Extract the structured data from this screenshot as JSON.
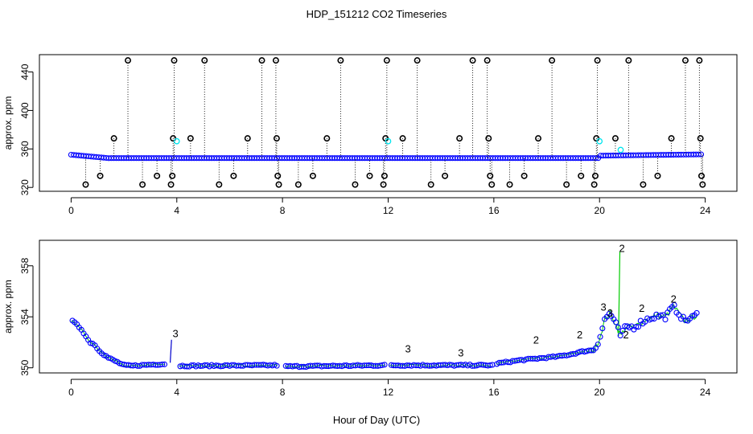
{
  "title": "HDP_151212  CO2 Timeseries",
  "xlabel": "Hour of Day (UTC)",
  "colors": {
    "frame": "#000000",
    "black_pts": "#000000",
    "blue_pts": "#0000ff",
    "cyan_pts": "#00e5ee",
    "green_pts": "#00cc00",
    "blue_lbl": "#0000cd"
  },
  "chart_data": [
    {
      "type": "scatter",
      "ylabel": "approx. ppm",
      "xlim": [
        -1.2,
        25.2
      ],
      "ylim": [
        316,
        458
      ],
      "xticks": [
        0,
        4,
        8,
        12,
        16,
        20,
        24
      ],
      "yticks": [
        320,
        360,
        400,
        440
      ],
      "flag_points": [
        {
          "x": 0.55,
          "y": 323
        },
        {
          "x": 1.1,
          "y": 332
        },
        {
          "x": 1.62,
          "y": 371
        },
        {
          "x": 2.15,
          "y": 452
        },
        {
          "x": 2.7,
          "y": 323
        },
        {
          "x": 3.25,
          "y": 332
        },
        {
          "x": 3.78,
          "y": 323
        },
        {
          "x": 3.83,
          "y": 332
        },
        {
          "x": 3.86,
          "y": 371
        },
        {
          "x": 3.9,
          "y": 452
        },
        {
          "x": 4.52,
          "y": 371
        },
        {
          "x": 5.05,
          "y": 452
        },
        {
          "x": 5.6,
          "y": 323
        },
        {
          "x": 6.15,
          "y": 332
        },
        {
          "x": 6.68,
          "y": 371
        },
        {
          "x": 7.22,
          "y": 452
        },
        {
          "x": 7.75,
          "y": 452
        },
        {
          "x": 7.78,
          "y": 371
        },
        {
          "x": 7.82,
          "y": 332
        },
        {
          "x": 7.86,
          "y": 323
        },
        {
          "x": 8.6,
          "y": 323
        },
        {
          "x": 9.15,
          "y": 332
        },
        {
          "x": 9.68,
          "y": 371
        },
        {
          "x": 10.2,
          "y": 452
        },
        {
          "x": 10.75,
          "y": 323
        },
        {
          "x": 11.3,
          "y": 332
        },
        {
          "x": 11.82,
          "y": 323
        },
        {
          "x": 11.86,
          "y": 332
        },
        {
          "x": 11.9,
          "y": 371
        },
        {
          "x": 11.95,
          "y": 452
        },
        {
          "x": 12.55,
          "y": 371
        },
        {
          "x": 13.1,
          "y": 452
        },
        {
          "x": 13.62,
          "y": 323
        },
        {
          "x": 14.15,
          "y": 332
        },
        {
          "x": 14.7,
          "y": 371
        },
        {
          "x": 15.2,
          "y": 452
        },
        {
          "x": 15.75,
          "y": 452
        },
        {
          "x": 15.8,
          "y": 371
        },
        {
          "x": 15.86,
          "y": 332
        },
        {
          "x": 15.92,
          "y": 323
        },
        {
          "x": 16.6,
          "y": 323
        },
        {
          "x": 17.15,
          "y": 332
        },
        {
          "x": 17.68,
          "y": 371
        },
        {
          "x": 18.2,
          "y": 452
        },
        {
          "x": 18.75,
          "y": 323
        },
        {
          "x": 19.3,
          "y": 332
        },
        {
          "x": 19.8,
          "y": 323
        },
        {
          "x": 19.84,
          "y": 332
        },
        {
          "x": 19.88,
          "y": 371
        },
        {
          "x": 19.92,
          "y": 452
        },
        {
          "x": 20.6,
          "y": 371
        },
        {
          "x": 21.1,
          "y": 452
        },
        {
          "x": 21.65,
          "y": 323
        },
        {
          "x": 22.2,
          "y": 332
        },
        {
          "x": 22.72,
          "y": 371
        },
        {
          "x": 23.25,
          "y": 452
        },
        {
          "x": 23.78,
          "y": 452
        },
        {
          "x": 23.82,
          "y": 371
        },
        {
          "x": 23.86,
          "y": 332
        },
        {
          "x": 23.9,
          "y": 323
        }
      ],
      "cyan_points": [
        {
          "x": 4.0,
          "y": 368
        },
        {
          "x": 12.0,
          "y": 368
        },
        {
          "x": 20.0,
          "y": 368
        },
        {
          "x": 20.8,
          "y": 359
        }
      ]
    },
    {
      "type": "scatter",
      "ylabel": "approx. ppm",
      "xlim": [
        -1.2,
        25.2
      ],
      "ylim": [
        349.6,
        360.0
      ],
      "xticks": [
        0,
        4,
        8,
        12,
        16,
        20,
        24
      ],
      "yticks": [
        350,
        354,
        358
      ],
      "gaps": [
        [
          3.55,
          4.05
        ],
        [
          7.8,
          8.05
        ],
        [
          11.9,
          12.05
        ],
        [
          15.95,
          16.05
        ]
      ],
      "series": [
        {
          "marker": "o",
          "x": [
            0.0,
            0.1,
            0.25,
            0.4,
            0.55,
            0.7,
            0.85,
            1.0,
            1.2,
            1.4,
            1.6,
            1.8,
            2.0,
            2.3,
            2.6,
            3.0,
            3.5,
            4.0,
            7.8,
            8.0,
            11.9,
            12.0,
            15.95,
            16.0,
            17.0,
            18.0,
            18.5,
            19.0,
            19.4,
            19.8,
            20.0,
            20.2,
            20.4,
            20.6,
            20.8,
            21.0,
            21.3,
            21.6,
            21.9,
            22.2,
            22.5,
            22.8,
            23.0,
            23.2,
            23.5,
            23.7
          ],
          "y": [
            353.7,
            353.6,
            353.3,
            353.0,
            352.5,
            352.0,
            351.9,
            351.5,
            351.1,
            350.8,
            350.6,
            350.4,
            350.2,
            350.15,
            350.2,
            350.25,
            350.3,
            350.15,
            350.2,
            350.1,
            350.2,
            350.2,
            350.2,
            350.3,
            350.6,
            350.8,
            350.9,
            351.1,
            351.3,
            351.4,
            352.3,
            353.8,
            354.3,
            353.5,
            352.5,
            353.2,
            353.2,
            353.6,
            353.9,
            354.1,
            354.0,
            354.8,
            354.3,
            353.7,
            353.9,
            354.2
          ]
        }
      ],
      "labels": [
        {
          "text": "3",
          "x": 3.95,
          "y": 352.4,
          "series": "3"
        },
        {
          "text": "3",
          "x": 12.75,
          "y": 351.2,
          "series": "3"
        },
        {
          "text": "3",
          "x": 14.75,
          "y": 350.9,
          "series": "3"
        },
        {
          "text": "2",
          "x": 20.85,
          "y": 359.1,
          "series": "2"
        },
        {
          "text": "2",
          "x": 21.0,
          "y": 352.3,
          "series": "2"
        },
        {
          "text": "3",
          "x": 20.15,
          "y": 354.5,
          "series": "3"
        },
        {
          "text": "3",
          "x": 20.4,
          "y": 354.0,
          "series": "3"
        },
        {
          "text": "2",
          "x": 19.25,
          "y": 352.3,
          "series": "2"
        },
        {
          "text": "2",
          "x": 17.6,
          "y": 351.9,
          "series": "2"
        },
        {
          "text": "2",
          "x": 21.6,
          "y": 354.4,
          "series": "2"
        },
        {
          "text": "2",
          "x": 22.8,
          "y": 355.1,
          "series": "2"
        }
      ]
    }
  ]
}
